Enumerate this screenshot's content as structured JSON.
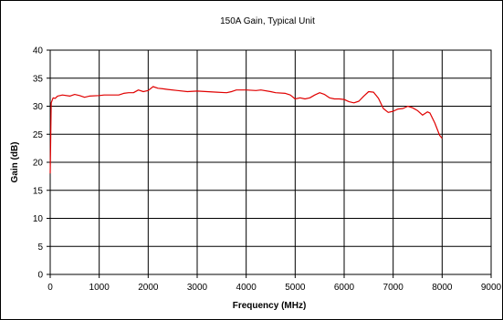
{
  "chart_data": {
    "type": "line",
    "title": "150A Gain, Typical Unit",
    "xlabel": "Frequency (MHz)",
    "ylabel": "Gain (dB)",
    "xlim": [
      0,
      9000
    ],
    "ylim": [
      0,
      40
    ],
    "xticks": [
      0,
      1000,
      2000,
      3000,
      4000,
      5000,
      6000,
      7000,
      8000,
      9000
    ],
    "yticks": [
      0,
      5,
      10,
      15,
      20,
      25,
      30,
      35,
      40
    ],
    "grid": true,
    "legend": "none",
    "series": [
      {
        "color": "#e00000",
        "points": [
          [
            0,
            18
          ],
          [
            20,
            30.6
          ],
          [
            60,
            31.5
          ],
          [
            100,
            31.4
          ],
          [
            150,
            31.8
          ],
          [
            250,
            32.0
          ],
          [
            400,
            31.8
          ],
          [
            500,
            32.1
          ],
          [
            600,
            31.9
          ],
          [
            700,
            31.6
          ],
          [
            800,
            31.8
          ],
          [
            1000,
            31.9
          ],
          [
            1100,
            32.0
          ],
          [
            1200,
            32.0
          ],
          [
            1400,
            32.0
          ],
          [
            1500,
            32.3
          ],
          [
            1600,
            32.4
          ],
          [
            1700,
            32.4
          ],
          [
            1800,
            32.9
          ],
          [
            1900,
            32.6
          ],
          [
            2000,
            32.8
          ],
          [
            2100,
            33.5
          ],
          [
            2200,
            33.2
          ],
          [
            2300,
            33.1
          ],
          [
            2400,
            33.0
          ],
          [
            2600,
            32.8
          ],
          [
            2800,
            32.6
          ],
          [
            3000,
            32.7
          ],
          [
            3200,
            32.6
          ],
          [
            3400,
            32.5
          ],
          [
            3600,
            32.4
          ],
          [
            3700,
            32.6
          ],
          [
            3800,
            32.9
          ],
          [
            4000,
            32.9
          ],
          [
            4200,
            32.8
          ],
          [
            4300,
            32.9
          ],
          [
            4500,
            32.6
          ],
          [
            4600,
            32.4
          ],
          [
            4800,
            32.3
          ],
          [
            4900,
            32.0
          ],
          [
            5000,
            31.3
          ],
          [
            5100,
            31.5
          ],
          [
            5200,
            31.3
          ],
          [
            5300,
            31.5
          ],
          [
            5400,
            32.0
          ],
          [
            5500,
            32.4
          ],
          [
            5600,
            32.1
          ],
          [
            5700,
            31.5
          ],
          [
            5800,
            31.3
          ],
          [
            5900,
            31.3
          ],
          [
            6000,
            31.2
          ],
          [
            6100,
            30.8
          ],
          [
            6200,
            30.6
          ],
          [
            6300,
            30.9
          ],
          [
            6400,
            31.8
          ],
          [
            6500,
            32.6
          ],
          [
            6600,
            32.5
          ],
          [
            6700,
            31.4
          ],
          [
            6800,
            29.6
          ],
          [
            6900,
            28.9
          ],
          [
            7000,
            29.1
          ],
          [
            7100,
            29.5
          ],
          [
            7200,
            29.6
          ],
          [
            7300,
            30.0
          ],
          [
            7400,
            29.7
          ],
          [
            7500,
            29.2
          ],
          [
            7600,
            28.4
          ],
          [
            7700,
            29.0
          ],
          [
            7750,
            28.8
          ],
          [
            7850,
            27.0
          ],
          [
            7950,
            24.8
          ],
          [
            8000,
            24.3
          ]
        ]
      }
    ]
  }
}
